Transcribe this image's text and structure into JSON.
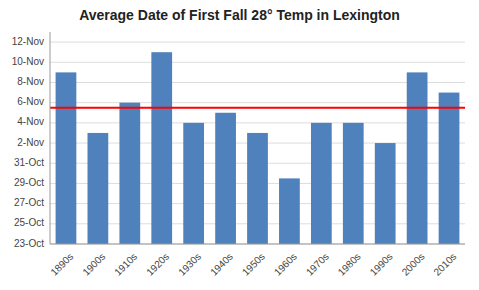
{
  "chart_data": {
    "type": "bar",
    "title": "Average Date of First Fall 28° Temp in Lexington",
    "categories": [
      "1890s",
      "1900s",
      "1910s",
      "1920s",
      "1930s",
      "1940s",
      "1950s",
      "1960s",
      "1970s",
      "1980s",
      "1990s",
      "2000s",
      "2010s"
    ],
    "values": [
      313,
      307,
      310,
      315,
      308,
      309,
      307,
      302.5,
      308,
      308,
      306,
      313,
      311
    ],
    "color": "#4F81BD",
    "ylim": [
      296,
      317
    ],
    "yticks": [
      {
        "value": 296,
        "label": "23-Oct"
      },
      {
        "value": 298,
        "label": "25-Oct"
      },
      {
        "value": 300,
        "label": "27-Oct"
      },
      {
        "value": 302,
        "label": "29-Oct"
      },
      {
        "value": 304,
        "label": "31-Oct"
      },
      {
        "value": 306,
        "label": "2-Nov"
      },
      {
        "value": 308,
        "label": "4-Nov"
      },
      {
        "value": 310,
        "label": "6-Nov"
      },
      {
        "value": 312,
        "label": "8-Nov"
      },
      {
        "value": 314,
        "label": "10-Nov"
      },
      {
        "value": 316,
        "label": "12-Nov"
      }
    ],
    "grid": true,
    "reference_line": {
      "value": 309.5,
      "color": "#FF0000"
    }
  }
}
